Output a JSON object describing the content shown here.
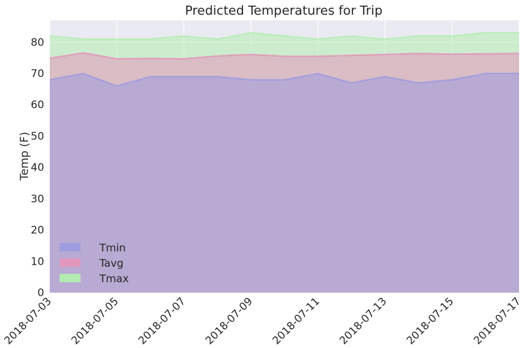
{
  "chart_data": {
    "type": "area",
    "title": "Predicted Temperatures for Trip",
    "xlabel": "",
    "ylabel": "Temp (F)",
    "ylim": [
      0,
      87
    ],
    "yticks": [
      0,
      10,
      20,
      30,
      40,
      50,
      60,
      70,
      80
    ],
    "xticks": [
      "2018-07-03",
      "2018-07-05",
      "2018-07-07",
      "2018-07-09",
      "2018-07-11",
      "2018-07-13",
      "2018-07-15",
      "2018-07-17"
    ],
    "x": [
      "2018-07-03",
      "2018-07-04",
      "2018-07-05",
      "2018-07-06",
      "2018-07-07",
      "2018-07-08",
      "2018-07-09",
      "2018-07-10",
      "2018-07-11",
      "2018-07-12",
      "2018-07-13",
      "2018-07-14",
      "2018-07-15",
      "2018-07-16",
      "2018-07-17"
    ],
    "grid": true,
    "stacked": false,
    "legend_position": "lower-left",
    "series": [
      {
        "name": "Tmin",
        "color": "#9d9be0",
        "values": [
          68,
          70,
          66,
          69,
          69,
          69,
          68,
          68,
          70,
          67,
          69,
          67,
          68,
          70,
          70
        ]
      },
      {
        "name": "Tavg",
        "color": "#e396bb",
        "values": [
          74.9,
          76.6,
          74.7,
          74.8,
          74.7,
          75.6,
          76.1,
          75.5,
          75.5,
          75.8,
          76.1,
          76.4,
          76.2,
          76.3,
          76.4
        ]
      },
      {
        "name": "Tmax",
        "color": "#b4edb0",
        "values": [
          82,
          81,
          81,
          81,
          82,
          81,
          83,
          82,
          81,
          82,
          81,
          82,
          82,
          83,
          83
        ]
      }
    ]
  }
}
